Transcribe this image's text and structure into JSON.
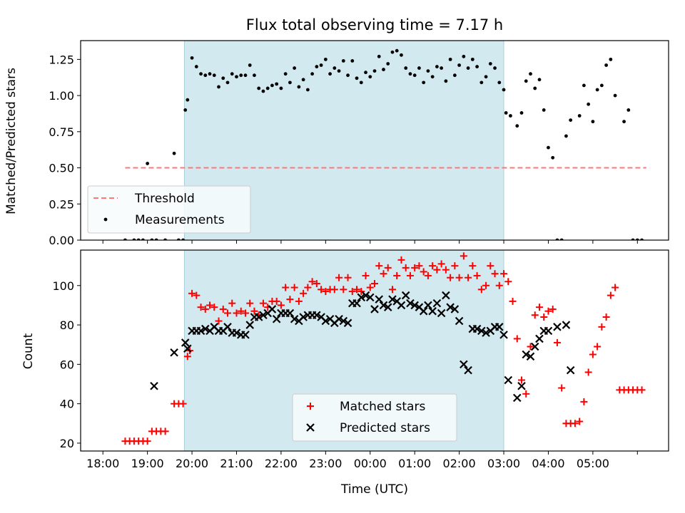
{
  "chart_data": [
    {
      "type": "scatter",
      "title": "Flux total observing time = 7.17 h",
      "xlabel": "",
      "ylabel": "Matched/Predicted stars",
      "xlim": [
        -0.5,
        12.7
      ],
      "ylim": [
        0,
        1.38
      ],
      "xticks": [
        0,
        1,
        2,
        3,
        4,
        5,
        6,
        7,
        8,
        9,
        10,
        11,
        12
      ],
      "yticks": [
        0.0,
        0.25,
        0.5,
        0.75,
        1.0,
        1.25
      ],
      "ytick_labels": [
        "0.00",
        "0.25",
        "0.50",
        "0.75",
        "1.00",
        "1.25"
      ],
      "shaded_span": [
        1.83,
        9.0
      ],
      "shade_color": "#d2e9f0",
      "legend": {
        "location": "lower left",
        "entries": [
          {
            "label": "Threshold",
            "kind": "dashed-line",
            "color": "#ff7777"
          },
          {
            "label": "Measurements",
            "kind": "dot",
            "color": "#000000"
          }
        ]
      },
      "threshold": {
        "name": "Threshold",
        "x": [
          0.5,
          12.2
        ],
        "y": 0.5,
        "color": "#ff7777"
      },
      "series": [
        {
          "name": "Measurements",
          "color": "#000000",
          "x": [
            0.5,
            0.7,
            0.8,
            0.9,
            1.0,
            1.1,
            1.2,
            1.4,
            1.6,
            1.7,
            1.8,
            1.85,
            1.9,
            2.0,
            2.1,
            2.2,
            2.3,
            2.4,
            2.5,
            2.6,
            2.7,
            2.8,
            2.9,
            3.0,
            3.1,
            3.2,
            3.3,
            3.4,
            3.5,
            3.6,
            3.7,
            3.8,
            3.9,
            4.0,
            4.1,
            4.2,
            4.3,
            4.4,
            4.5,
            4.6,
            4.7,
            4.8,
            4.9,
            5.0,
            5.1,
            5.2,
            5.3,
            5.4,
            5.5,
            5.6,
            5.7,
            5.8,
            5.9,
            6.0,
            6.1,
            6.2,
            6.3,
            6.4,
            6.5,
            6.6,
            6.7,
            6.8,
            6.9,
            7.0,
            7.1,
            7.2,
            7.3,
            7.4,
            7.5,
            7.6,
            7.7,
            7.8,
            7.9,
            8.0,
            8.1,
            8.2,
            8.3,
            8.4,
            8.5,
            8.6,
            8.7,
            8.8,
            8.9,
            9.0,
            9.05,
            9.15,
            9.3,
            9.4,
            9.5,
            9.6,
            9.7,
            9.8,
            9.9,
            10.0,
            10.1,
            10.2,
            10.3,
            10.4,
            10.5,
            10.7,
            10.8,
            10.9,
            11.0,
            11.1,
            11.2,
            11.3,
            11.4,
            11.5,
            11.7,
            11.8,
            11.9,
            12.0,
            12.1
          ],
          "y": [
            0.0,
            0.0,
            0.0,
            0.0,
            0.53,
            0.0,
            0.0,
            0.0,
            0.6,
            0.0,
            0.0,
            0.9,
            0.97,
            1.26,
            1.2,
            1.15,
            1.14,
            1.15,
            1.14,
            1.06,
            1.12,
            1.09,
            1.15,
            1.13,
            1.14,
            1.14,
            1.21,
            1.14,
            1.05,
            1.03,
            1.05,
            1.07,
            1.08,
            1.05,
            1.15,
            1.09,
            1.19,
            1.06,
            1.11,
            1.04,
            1.15,
            1.2,
            1.21,
            1.25,
            1.15,
            1.19,
            1.17,
            1.24,
            1.14,
            1.24,
            1.12,
            1.09,
            1.16,
            1.13,
            1.17,
            1.27,
            1.18,
            1.22,
            1.3,
            1.31,
            1.28,
            1.19,
            1.15,
            1.14,
            1.19,
            1.09,
            1.17,
            1.13,
            1.2,
            1.19,
            1.1,
            1.25,
            1.14,
            1.21,
            1.27,
            1.19,
            1.25,
            1.2,
            1.09,
            1.13,
            1.22,
            1.19,
            1.09,
            1.04,
            0.88,
            0.86,
            0.79,
            0.88,
            1.1,
            1.15,
            1.05,
            1.11,
            0.9,
            0.64,
            0.57,
            0.0,
            0.0,
            0.72,
            0.83,
            0.86,
            1.07,
            0.94,
            0.82,
            1.04,
            1.07,
            1.21,
            1.25,
            1.0,
            0.82,
            0.9,
            0.0,
            0.0,
            0.0
          ]
        }
      ]
    },
    {
      "type": "scatter",
      "title": "",
      "xlabel": "Time (UTC)",
      "ylabel": "Count",
      "xlim": [
        -0.5,
        12.7
      ],
      "ylim": [
        16,
        118
      ],
      "xticks": [
        0,
        1,
        2,
        3,
        4,
        5,
        6,
        7,
        8,
        9,
        10,
        11,
        12
      ],
      "xtick_labels": [
        "18:00",
        "19:00",
        "20:00",
        "21:00",
        "22:00",
        "23:00",
        "00:00",
        "01:00",
        "02:00",
        "03:00",
        "04:00",
        "05:00"
      ],
      "xtick_labels_note": "labels for ticks 0..11; tick 12 unlabelled",
      "yticks": [
        20,
        40,
        60,
        80,
        100
      ],
      "ytick_labels": [
        "20",
        "40",
        "60",
        "80",
        "100"
      ],
      "shaded_span": [
        1.83,
        9.0
      ],
      "shade_color": "#d2e9f0",
      "legend": {
        "location": "lower center",
        "entries": [
          {
            "label": "Matched stars",
            "kind": "plus",
            "color": "#ff0000"
          },
          {
            "label": "Predicted stars",
            "kind": "x",
            "color": "#000000"
          }
        ]
      },
      "series": [
        {
          "name": "Matched stars",
          "marker": "plus",
          "color": "#ff0000",
          "x": [
            0.5,
            0.6,
            0.7,
            0.8,
            0.9,
            1.0,
            1.1,
            1.2,
            1.3,
            1.4,
            1.6,
            1.7,
            1.8,
            1.9,
            1.95,
            2.0,
            2.1,
            2.2,
            2.3,
            2.4,
            2.5,
            2.6,
            2.7,
            2.8,
            2.9,
            3.0,
            3.1,
            3.2,
            3.3,
            3.4,
            3.5,
            3.6,
            3.7,
            3.8,
            3.9,
            4.0,
            4.1,
            4.2,
            4.3,
            4.4,
            4.5,
            4.6,
            4.7,
            4.8,
            4.9,
            5.0,
            5.1,
            5.2,
            5.3,
            5.4,
            5.5,
            5.6,
            5.7,
            5.8,
            5.9,
            6.0,
            6.1,
            6.2,
            6.3,
            6.4,
            6.5,
            6.6,
            6.7,
            6.8,
            6.9,
            7.0,
            7.1,
            7.2,
            7.3,
            7.4,
            7.5,
            7.6,
            7.7,
            7.8,
            7.9,
            8.0,
            8.1,
            8.2,
            8.3,
            8.4,
            8.5,
            8.6,
            8.7,
            8.8,
            8.9,
            9.0,
            9.1,
            9.2,
            9.3,
            9.4,
            9.5,
            9.6,
            9.7,
            9.8,
            9.9,
            10.0,
            10.1,
            10.2,
            10.3,
            10.4,
            10.5,
            10.6,
            10.7,
            10.8,
            10.9,
            11.0,
            11.1,
            11.2,
            11.3,
            11.4,
            11.5,
            11.6,
            11.7,
            11.8,
            11.9,
            12.0,
            12.1
          ],
          "y": [
            21,
            21,
            21,
            21,
            21,
            21,
            26,
            26,
            26,
            26,
            40,
            40,
            40,
            64,
            67,
            96,
            95,
            89,
            88,
            90,
            89,
            82,
            88,
            86,
            91,
            86,
            87,
            86,
            91,
            87,
            85,
            91,
            89,
            92,
            92,
            90,
            99,
            93,
            99,
            92,
            96,
            99,
            102,
            101,
            98,
            97,
            98,
            98,
            104,
            98,
            104,
            97,
            98,
            97,
            105,
            99,
            101,
            110,
            106,
            109,
            98,
            105,
            113,
            109,
            105,
            109,
            110,
            107,
            105,
            110,
            108,
            111,
            108,
            104,
            110,
            104,
            115,
            104,
            110,
            105,
            98,
            100,
            110,
            106,
            100,
            106,
            102,
            92,
            73,
            52,
            45,
            69,
            85,
            89,
            84,
            87,
            88,
            71,
            48,
            30,
            30,
            30,
            31,
            41,
            56,
            65,
            69,
            79,
            84,
            95,
            99,
            47,
            47,
            47,
            47,
            47,
            47
          ]
        },
        {
          "name": "Predicted stars",
          "marker": "x",
          "color": "#000000",
          "x": [
            1.15,
            1.6,
            1.85,
            1.9,
            2.0,
            2.1,
            2.2,
            2.3,
            2.4,
            2.5,
            2.6,
            2.7,
            2.8,
            2.9,
            3.0,
            3.1,
            3.2,
            3.3,
            3.4,
            3.5,
            3.6,
            3.7,
            3.8,
            3.9,
            4.0,
            4.1,
            4.2,
            4.3,
            4.4,
            4.5,
            4.6,
            4.7,
            4.8,
            4.9,
            5.0,
            5.1,
            5.2,
            5.3,
            5.4,
            5.5,
            5.6,
            5.7,
            5.8,
            5.9,
            6.0,
            6.1,
            6.2,
            6.3,
            6.4,
            6.5,
            6.6,
            6.7,
            6.8,
            6.9,
            7.0,
            7.1,
            7.2,
            7.3,
            7.4,
            7.5,
            7.6,
            7.7,
            7.8,
            7.9,
            8.0,
            8.1,
            8.2,
            8.3,
            8.4,
            8.5,
            8.6,
            8.7,
            8.8,
            8.9,
            9.0,
            9.1,
            9.3,
            9.4,
            9.5,
            9.6,
            9.7,
            9.8,
            9.9,
            10.0,
            10.2,
            10.4,
            10.5
          ],
          "y": [
            49,
            66,
            71,
            68,
            77,
            77,
            77,
            78,
            77,
            79,
            77,
            77,
            79,
            76,
            76,
            75,
            75,
            80,
            84,
            84,
            85,
            86,
            88,
            83,
            86,
            86,
            86,
            83,
            82,
            84,
            85,
            85,
            85,
            84,
            82,
            83,
            81,
            83,
            82,
            81,
            91,
            91,
            94,
            95,
            94,
            88,
            93,
            90,
            89,
            93,
            92,
            90,
            95,
            91,
            90,
            89,
            87,
            90,
            87,
            91,
            86,
            95,
            89,
            88,
            82,
            60,
            57,
            78,
            78,
            77,
            76,
            77,
            79,
            79,
            75,
            52,
            43,
            49,
            65,
            64,
            69,
            73,
            77,
            77,
            79,
            80,
            57
          ]
        }
      ]
    }
  ]
}
